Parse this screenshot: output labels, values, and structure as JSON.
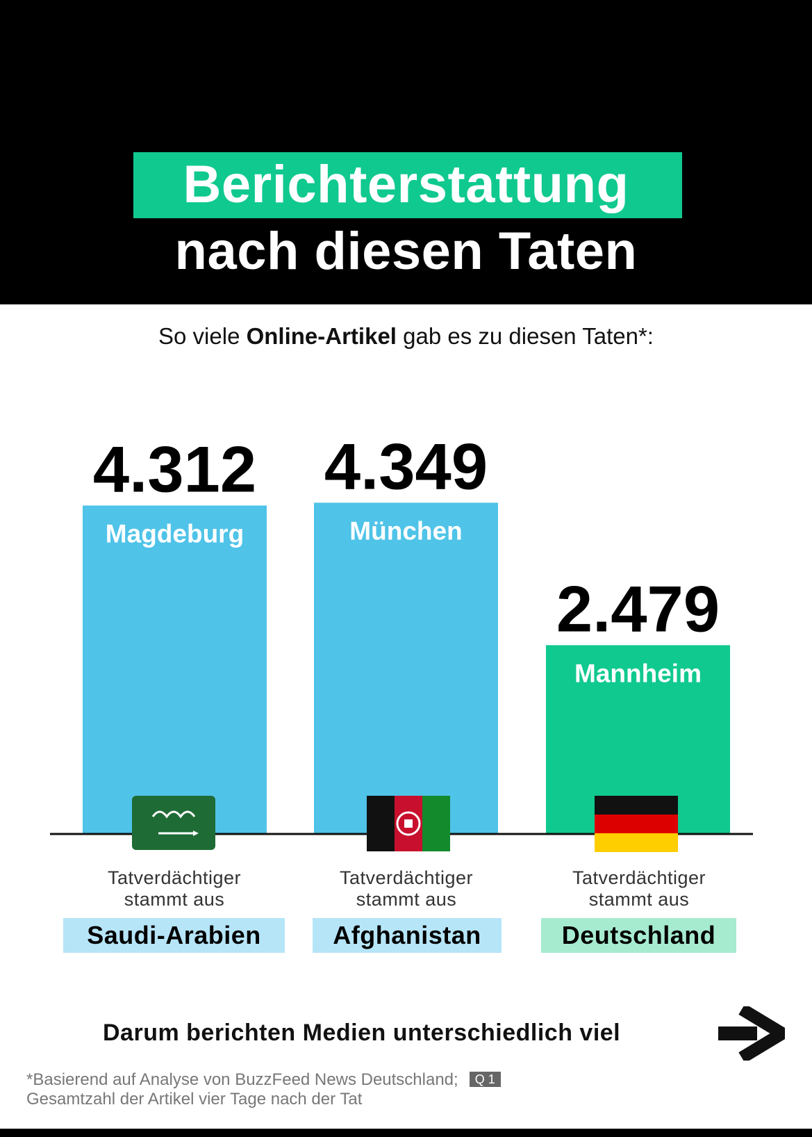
{
  "colors": {
    "accent_green": "#10c98f",
    "bar_blue": "#4fc3e8",
    "label_blue_bg": "#b6e5f8",
    "label_green_bg": "#a6ebd0"
  },
  "title": {
    "line1": "Berichterstattung",
    "line2": "nach diesen Taten"
  },
  "subtitle": {
    "prefix": "So viele ",
    "bold": "Online-Artikel",
    "suffix": " gab es zu diesen Taten*:"
  },
  "chart_data": {
    "type": "bar",
    "categories": [
      "Magdeburg",
      "München",
      "Mannheim"
    ],
    "values": [
      4312,
      4349,
      2479
    ],
    "value_labels": [
      "4.312",
      "4.349",
      "2.479"
    ],
    "colors": [
      "#4fc3e8",
      "#4fc3e8",
      "#10c98f"
    ],
    "ylim": [
      0,
      4349
    ],
    "grid": false,
    "legend": "none",
    "title": "",
    "xlabel": "",
    "ylabel": ""
  },
  "bars_info": [
    {
      "caption_line1": "Tatverdächtiger",
      "caption_line2": "stammt aus",
      "country": "Saudi-Arabien",
      "flag_icon": "saudi-arabia-flag-icon"
    },
    {
      "caption_line1": "Tatverdächtiger",
      "caption_line2": "stammt aus",
      "country": "Afghanistan",
      "flag_icon": "afghanistan-flag-icon"
    },
    {
      "caption_line1": "Tatverdächtiger",
      "caption_line2": "stammt aus",
      "country": "Deutschland",
      "flag_icon": "germany-flag-icon"
    }
  ],
  "cta": {
    "text": "Darum berichten Medien unterschiedlich viel",
    "icon": "arrow-right-icon"
  },
  "footnote": {
    "line1": "*Basierend auf Analyse von BuzzFeed News Deutschland;",
    "badge": "Q 1",
    "line2": "Gesamtzahl der Artikel vier Tage nach der Tat"
  }
}
